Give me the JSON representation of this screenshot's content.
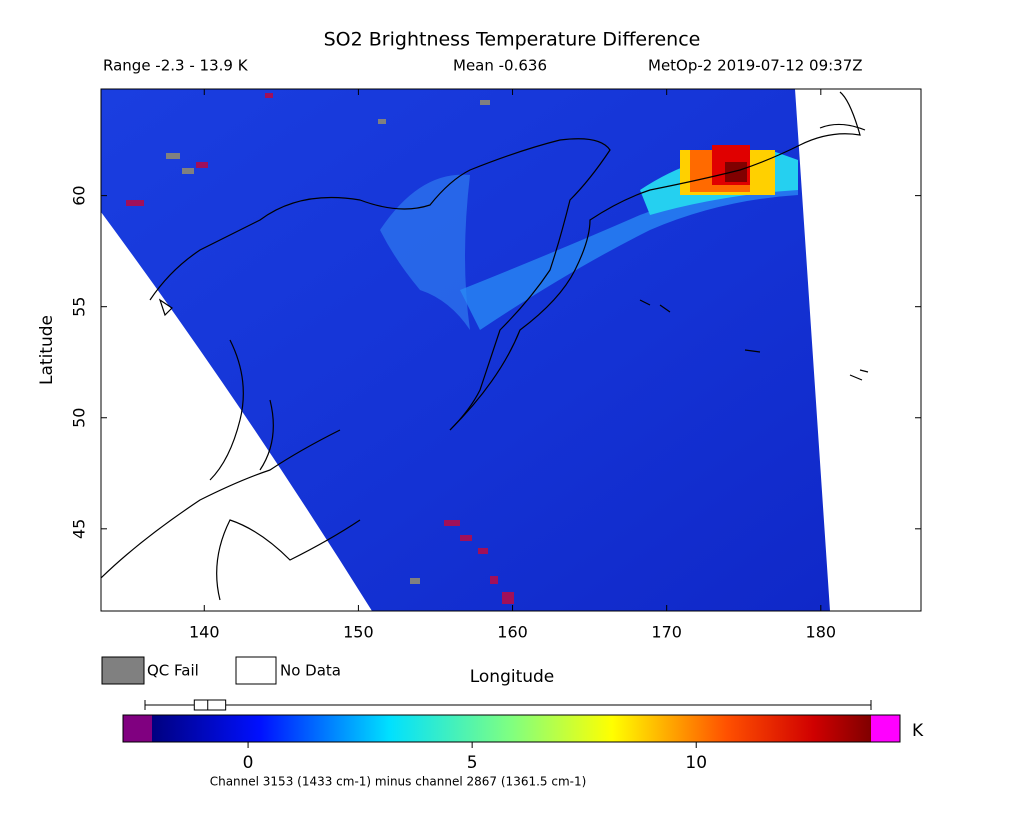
{
  "header": {
    "title": "SO2 Brightness Temperature Difference",
    "range": "Range -2.3 - 13.9 K",
    "mean": "Mean -0.636",
    "source": "MetOp-2 2019-07-12 09:37Z"
  },
  "map": {
    "xlabel": "Longitude",
    "ylabel": "Latitude",
    "xlim": [
      133.3,
      186.5
    ],
    "ylim": [
      41.3,
      64.8
    ],
    "xticks": [
      140,
      150,
      160,
      170,
      180
    ],
    "yticks": [
      45,
      50,
      55,
      60
    ]
  },
  "legend": [
    "QC Fail",
    "No Data"
  ],
  "colorbar": {
    "lim": [
      -2.3,
      13.9
    ],
    "ticks": [
      0,
      5,
      10
    ],
    "unit": "K",
    "boxplot": {
      "min": -2.3,
      "q1": -1.2,
      "median": -0.9,
      "q3": -0.5,
      "max": 13.9
    },
    "caption": "Channel 3153 (1433 cm-1) minus channel 2867 (1361.5 cm-1)"
  }
}
